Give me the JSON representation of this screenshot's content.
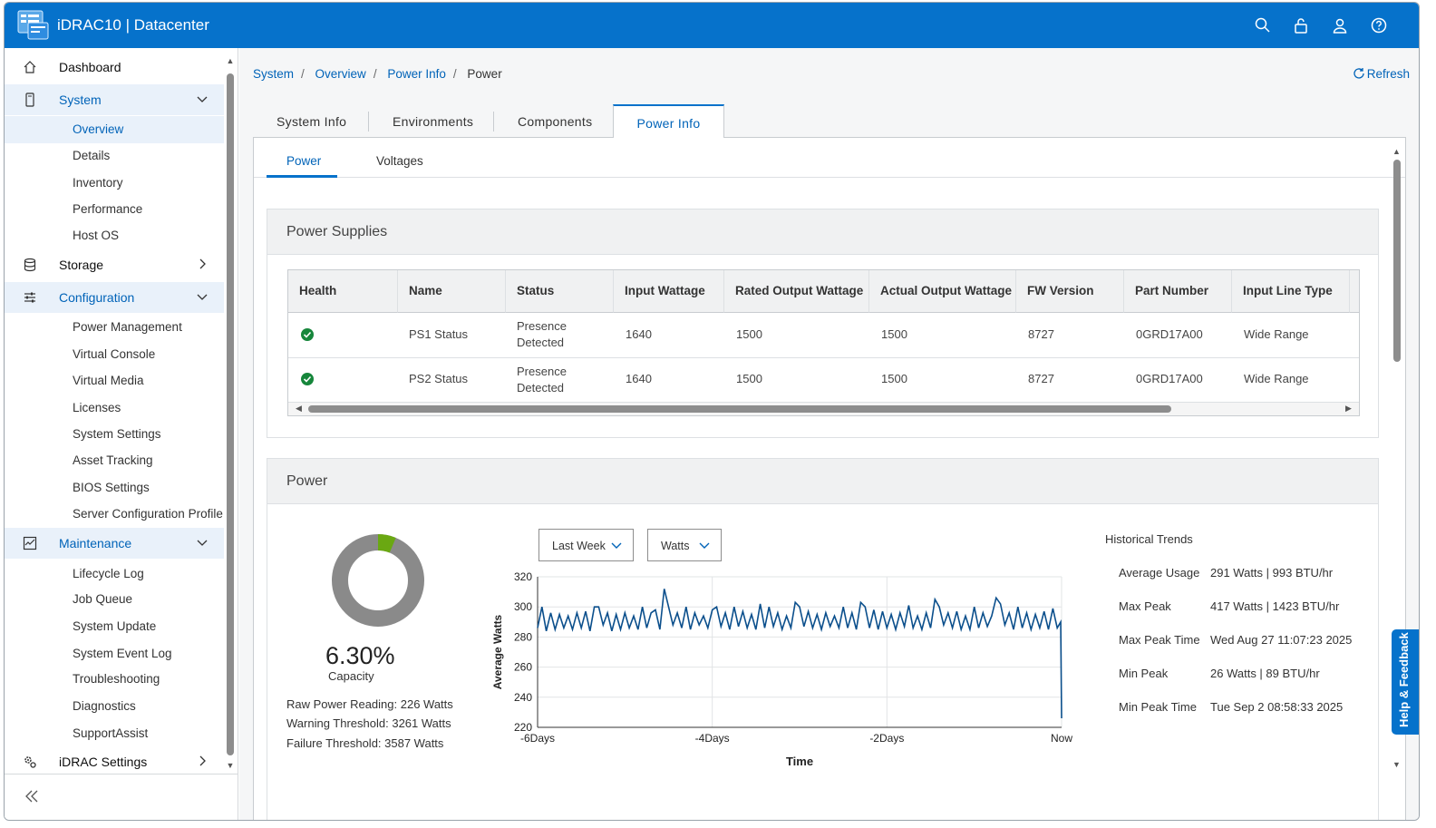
{
  "header": {
    "title": "iDRAC10 | Datacenter"
  },
  "breadcrumb": {
    "items": [
      "System",
      "Overview",
      "Power Info"
    ],
    "current": "Power",
    "refresh": "Refresh"
  },
  "sidebar": {
    "dashboard": "Dashboard",
    "system": {
      "label": "System",
      "children": [
        "Overview",
        "Details",
        "Inventory",
        "Performance",
        "Host OS"
      ]
    },
    "storage": "Storage",
    "configuration": {
      "label": "Configuration",
      "children": [
        "Power Management",
        "Virtual Console",
        "Virtual Media",
        "Licenses",
        "System Settings",
        "Asset Tracking",
        "BIOS Settings",
        "Server Configuration Profile"
      ]
    },
    "maintenance": {
      "label": "Maintenance",
      "children": [
        "Lifecycle Log",
        "Job Queue",
        "System Update",
        "System Event Log",
        "Troubleshooting",
        "Diagnostics",
        "SupportAssist"
      ]
    },
    "idrac_settings": "iDRAC Settings"
  },
  "tabs": [
    "System Info",
    "Environments",
    "Components",
    "Power Info"
  ],
  "subtabs": [
    "Power",
    "Voltages"
  ],
  "power_supplies": {
    "title": "Power Supplies",
    "columns": [
      "Health",
      "Name",
      "Status",
      "Input Wattage",
      "Rated Output Wattage",
      "Actual Output Wattage",
      "FW Version",
      "Part Number",
      "Input Line Type"
    ],
    "rows": [
      {
        "name": "PS1 Status",
        "status_line1": "Presence",
        "status_line2": "Detected",
        "input": "1640",
        "rated": "1500",
        "actual": "1500",
        "fw": "8727",
        "part": "0GRD17A00",
        "line": "Wide Range"
      },
      {
        "name": "PS2 Status",
        "status_line1": "Presence",
        "status_line2": "Detected",
        "input": "1640",
        "rated": "1500",
        "actual": "1500",
        "fw": "8727",
        "part": "0GRD17A00",
        "line": "Wide Range"
      }
    ]
  },
  "power": {
    "title": "Power",
    "capacity_percent": "6.30%",
    "capacity_label": "Capacity",
    "capacity_fraction": 0.063,
    "raw_reading": "Raw Power Reading: 226 Watts",
    "warning": "Warning Threshold: 3261 Watts",
    "failure": "Failure Threshold: 3587 Watts",
    "range_select": "Last Week",
    "unit_select": "Watts",
    "colors": {
      "used": "#6aa812",
      "free": "#8a8a8a",
      "line": "#0b4f8c",
      "accent": "#0672cb"
    }
  },
  "historical_trends": {
    "title": "Historical Trends",
    "items": [
      {
        "label": "Average Usage",
        "value": "291 Watts | 993 BTU/hr"
      },
      {
        "label": "Max Peak",
        "value": "417 Watts | 1423 BTU/hr"
      },
      {
        "label": "Max Peak Time",
        "value": "Wed Aug 27 11:07:23 2025"
      },
      {
        "label": "Min Peak",
        "value": "26 Watts | 89 BTU/hr"
      },
      {
        "label": "Min Peak Time",
        "value": "Tue Sep 2 08:58:33 2025"
      }
    ]
  },
  "chart_data": {
    "type": "line",
    "title": "",
    "xlabel": "Time",
    "ylabel": "Average Watts",
    "x_ticks": [
      "-6Days",
      "-4Days",
      "-2Days",
      "Now"
    ],
    "y_ticks": [
      220,
      240,
      260,
      280,
      300,
      320
    ],
    "ylim": [
      220,
      320
    ],
    "xlim": [
      -6,
      0
    ],
    "grid": true,
    "series": [
      {
        "values_x": [
          -6.0,
          -5.95,
          -5.9,
          -5.85,
          -5.8,
          -5.75,
          -5.7,
          -5.65,
          -5.6,
          -5.55,
          -5.5,
          -5.45,
          -5.4,
          -5.35,
          -5.3,
          -5.25,
          -5.2,
          -5.15,
          -5.1,
          -5.05,
          -5.0,
          -4.95,
          -4.9,
          -4.85,
          -4.8,
          -4.75,
          -4.7,
          -4.65,
          -4.6,
          -4.55,
          -4.5,
          -4.45,
          -4.4,
          -4.35,
          -4.3,
          -4.25,
          -4.2,
          -4.15,
          -4.1,
          -4.05,
          -4.0,
          -3.95,
          -3.9,
          -3.85,
          -3.8,
          -3.75,
          -3.7,
          -3.65,
          -3.6,
          -3.55,
          -3.5,
          -3.45,
          -3.4,
          -3.35,
          -3.3,
          -3.25,
          -3.2,
          -3.15,
          -3.1,
          -3.05,
          -3.0,
          -2.95,
          -2.9,
          -2.85,
          -2.8,
          -2.75,
          -2.7,
          -2.65,
          -2.6,
          -2.55,
          -2.5,
          -2.45,
          -2.4,
          -2.35,
          -2.3,
          -2.25,
          -2.2,
          -2.15,
          -2.1,
          -2.05,
          -2.0,
          -1.95,
          -1.9,
          -1.85,
          -1.8,
          -1.75,
          -1.7,
          -1.65,
          -1.6,
          -1.55,
          -1.5,
          -1.45,
          -1.4,
          -1.35,
          -1.3,
          -1.25,
          -1.2,
          -1.15,
          -1.1,
          -1.05,
          -1.0,
          -0.95,
          -0.9,
          -0.85,
          -0.8,
          -0.75,
          -0.7,
          -0.65,
          -0.6,
          -0.55,
          -0.5,
          -0.45,
          -0.4,
          -0.35,
          -0.3,
          -0.25,
          -0.2,
          -0.15,
          -0.1,
          -0.05,
          -0.01,
          0.0
        ],
        "values_y": [
          286,
          300,
          284,
          296,
          285,
          295,
          286,
          294,
          285,
          296,
          286,
          297,
          284,
          300,
          300,
          288,
          296,
          284,
          295,
          285,
          296,
          286,
          294,
          285,
          300,
          286,
          296,
          298,
          285,
          312,
          300,
          288,
          296,
          286,
          300,
          285,
          296,
          288,
          294,
          286,
          298,
          300,
          287,
          296,
          285,
          300,
          287,
          297,
          286,
          295,
          285,
          302,
          286,
          300,
          287,
          296,
          285,
          294,
          286,
          303,
          300,
          287,
          297,
          286,
          295,
          285,
          296,
          287,
          294,
          286,
          300,
          286,
          296,
          285,
          303,
          300,
          286,
          298,
          285,
          297,
          286,
          295,
          285,
          296,
          287,
          301,
          286,
          294,
          285,
          296,
          286,
          305,
          300,
          288,
          296,
          286,
          297,
          285,
          294,
          285,
          300,
          286,
          296,
          287,
          294,
          306,
          302,
          288,
          296,
          285,
          300,
          286,
          296,
          285,
          295,
          286,
          297,
          285,
          299,
          286,
          290,
          226
        ]
      }
    ]
  }
}
